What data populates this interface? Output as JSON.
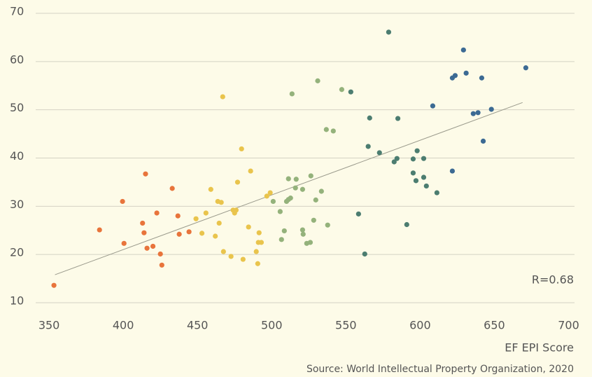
{
  "chart_data": {
    "type": "scatter",
    "xlabel": "EF EPI Score",
    "source": "Source: World Intellectual Property Organization, 2020",
    "annotation": "R=0.68",
    "xlim": [
      341,
      704
    ],
    "ylim": [
      10,
      70
    ],
    "xticks": [
      350,
      400,
      450,
      500,
      550,
      600,
      650,
      700
    ],
    "yticks": [
      10,
      20,
      30,
      40,
      50,
      60,
      70
    ],
    "grid": true,
    "trendline": {
      "color": "#9a9a8c",
      "x": [
        354,
        669
      ],
      "y": [
        15.8,
        51.5
      ]
    },
    "series": [
      {
        "color": "#e8743b",
        "x": [
          353.3,
          384,
          399.5,
          400.5,
          413,
          414,
          415,
          416,
          420,
          422.6,
          425,
          426,
          433,
          436.8,
          437.7,
          444.3
        ],
        "y": [
          13.6,
          25.1,
          31.0,
          22.3,
          26.5,
          24.5,
          36.7,
          21.3,
          21.7,
          28.6,
          20.1,
          17.8,
          33.7,
          28.0,
          24.2,
          24.7
        ]
      },
      {
        "color": "#e9c44c",
        "x": [
          449,
          453,
          455.7,
          459,
          462,
          463.7,
          464.6,
          466,
          467,
          467.5,
          472.6,
          474,
          475,
          476,
          477,
          479.7,
          480.7,
          484.4,
          485.8,
          489.6,
          490.6,
          491,
          491.5,
          493,
          496.7,
          499
        ],
        "y": [
          27.4,
          24.4,
          28.6,
          33.5,
          23.8,
          31.0,
          26.5,
          30.8,
          52.7,
          20.6,
          19.6,
          29.2,
          28.6,
          29.2,
          35.0,
          41.9,
          19.0,
          25.7,
          37.3,
          20.6,
          18.1,
          22.5,
          24.5,
          22.5,
          32.1,
          32.8
        ]
      },
      {
        "color": "#94b27b",
        "x": [
          501,
          505.7,
          506.6,
          508.5,
          510,
          511.3,
          512.7,
          511.3,
          513.7,
          516,
          516.5,
          520.8,
          520.8,
          521.2,
          523.6,
          526,
          526.4,
          528.3,
          529.7,
          531,
          533.5,
          536.8,
          537.7,
          541.5,
          547.2
        ],
        "y": [
          31.0,
          28.9,
          23.1,
          24.9,
          31.0,
          31.4,
          31.7,
          35.7,
          53.3,
          33.8,
          35.6,
          33.5,
          25.1,
          24.2,
          22.3,
          22.5,
          36.3,
          27.1,
          31.3,
          56.0,
          33.1,
          45.9,
          26.1,
          45.6,
          54.2
        ]
      },
      {
        "color": "#4c7d70",
        "x": [
          553.3,
          558.5,
          562.7,
          565,
          566,
          572.6,
          578.8,
          582.5,
          584.4,
          585,
          591,
          595.3,
          595.3,
          597.2,
          598,
          602.4,
          602.4,
          604.2,
          611.3
        ],
        "y": [
          53.7,
          28.4,
          20.1,
          42.4,
          48.3,
          41.1,
          66.1,
          39.2,
          39.9,
          48.2,
          26.2,
          39.8,
          36.9,
          35.3,
          41.5,
          39.9,
          36.0,
          34.2,
          32.8
        ]
      },
      {
        "color": "#3c6a93",
        "x": [
          608.5,
          621.7,
          623.6,
          629.2,
          631,
          635.8,
          639,
          641.5,
          642.5,
          648,
          671.2,
          621.7
        ],
        "y": [
          50.8,
          56.6,
          57.1,
          62.4,
          57.6,
          49.2,
          49.4,
          56.6,
          43.5,
          50.1,
          58.7,
          37.3
        ]
      }
    ]
  }
}
